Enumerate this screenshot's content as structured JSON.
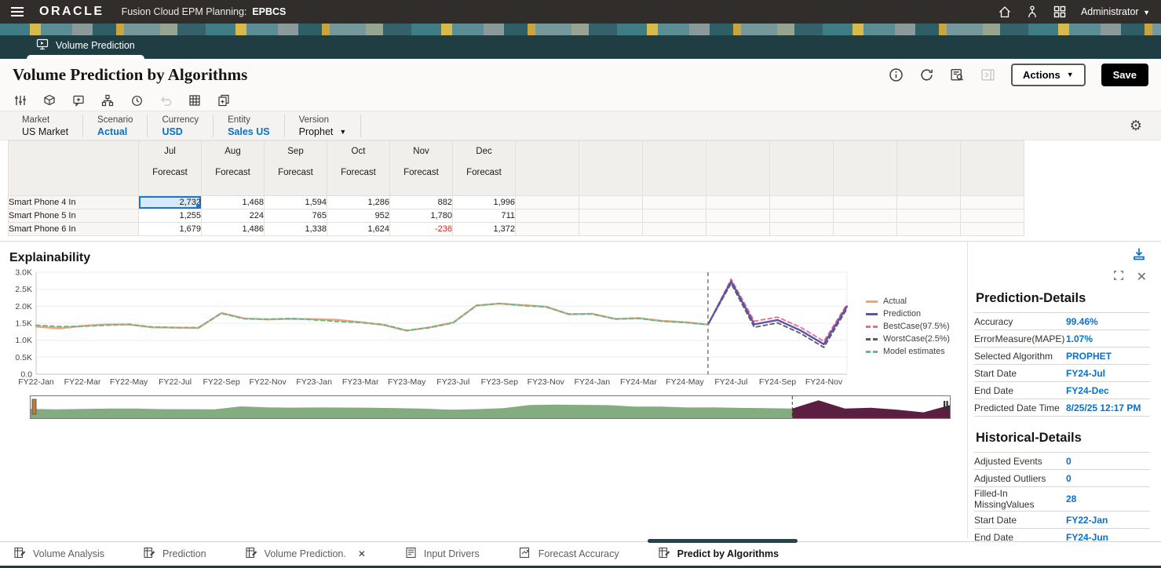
{
  "header": {
    "brand": "ORACLE",
    "product": "Fusion Cloud EPM Planning:",
    "app": "EPBCS",
    "user": "Administrator"
  },
  "workspace_tab": {
    "label": "Volume Prediction"
  },
  "page": {
    "title": "Volume Prediction by Algorithms",
    "actions_label": "Actions",
    "save_label": "Save"
  },
  "toolbar": {
    "icons": [
      {
        "name": "adjust-columns-icon",
        "disabled": false
      },
      {
        "name": "dimension-cube-icon",
        "disabled": false
      },
      {
        "name": "comment-icon",
        "disabled": false
      },
      {
        "name": "hierarchy-icon",
        "disabled": false
      },
      {
        "name": "history-icon",
        "disabled": false
      },
      {
        "name": "undo-icon",
        "disabled": true
      },
      {
        "name": "grid-icon",
        "disabled": false
      },
      {
        "name": "save-as-icon",
        "disabled": false
      }
    ]
  },
  "pov": {
    "items": [
      {
        "label": "Market",
        "value": "US Market",
        "blue": false,
        "dropdown": false
      },
      {
        "label": "Scenario",
        "value": "Actual",
        "blue": true,
        "dropdown": false
      },
      {
        "label": "Currency",
        "value": "USD",
        "blue": true,
        "dropdown": false
      },
      {
        "label": "Entity",
        "value": "Sales US",
        "blue": true,
        "dropdown": false
      },
      {
        "label": "Version",
        "value": "Prophet",
        "blue": false,
        "dropdown": true
      }
    ]
  },
  "grid": {
    "columns": [
      {
        "month": "Jul",
        "sub": "Forecast"
      },
      {
        "month": "Aug",
        "sub": "Forecast"
      },
      {
        "month": "Sep",
        "sub": "Forecast"
      },
      {
        "month": "Oct",
        "sub": "Forecast"
      },
      {
        "month": "Nov",
        "sub": "Forecast"
      },
      {
        "month": "Dec",
        "sub": "Forecast"
      }
    ],
    "empty_columns": 8,
    "rows": [
      {
        "name": "Smart Phone 4 In",
        "values": [
          "2,732",
          "1,468",
          "1,594",
          "1,286",
          "882",
          "1,996"
        ]
      },
      {
        "name": "Smart Phone 5 In",
        "values": [
          "1,255",
          "224",
          "765",
          "952",
          "1,780",
          "711"
        ]
      },
      {
        "name": "Smart Phone 6 In",
        "values": [
          "1,679",
          "1,486",
          "1,338",
          "1,624",
          "-236",
          "1,372"
        ]
      }
    ],
    "selected": {
      "row": 0,
      "col": 0
    }
  },
  "explainability": {
    "title": "Explainability"
  },
  "chart_data": {
    "type": "line",
    "title": "Explainability",
    "x": [
      "FY22-Jan",
      "FY22-Feb",
      "FY22-Mar",
      "FY22-Apr",
      "FY22-May",
      "FY22-Jun",
      "FY22-Jul",
      "FY22-Aug",
      "FY22-Sep",
      "FY22-Oct",
      "FY22-Nov",
      "FY22-Dec",
      "FY23-Jan",
      "FY23-Feb",
      "FY23-Mar",
      "FY23-Apr",
      "FY23-May",
      "FY23-Jun",
      "FY23-Jul",
      "FY23-Aug",
      "FY23-Sep",
      "FY23-Oct",
      "FY23-Nov",
      "FY23-Dec",
      "FY24-Jan",
      "FY24-Feb",
      "FY24-Mar",
      "FY24-Apr",
      "FY24-May",
      "FY24-Jun",
      "FY24-Jul",
      "FY24-Aug",
      "FY24-Sep",
      "FY24-Oct",
      "FY24-Nov",
      "FY24-Dec"
    ],
    "x_tick_every": 2,
    "ylim": [
      0,
      3
    ],
    "yticks": [
      "0.0",
      "0.5K",
      "1.0K",
      "1.5K",
      "2.0K",
      "2.5K",
      "3.0K"
    ],
    "unit": "K",
    "divider_index": 29,
    "legend_position": "right",
    "draw_order": [
      0,
      2,
      3,
      1,
      4
    ],
    "series": [
      {
        "name": "Actual",
        "color": "#F4A26E",
        "dash": false,
        "width": 2.4,
        "values": [
          1.4,
          1.35,
          1.42,
          1.46,
          1.46,
          1.38,
          1.37,
          1.36,
          1.8,
          1.64,
          1.61,
          1.63,
          1.62,
          1.6,
          1.53,
          1.45,
          1.28,
          1.38,
          1.52,
          2.02,
          2.08,
          2.03,
          1.99,
          1.76,
          1.78,
          1.63,
          1.65,
          1.57,
          1.53,
          1.46,
          null,
          null,
          null,
          null,
          null,
          null
        ]
      },
      {
        "name": "Prediction",
        "color": "#5C55A8",
        "dash": false,
        "width": 2.4,
        "values": [
          null,
          null,
          null,
          null,
          null,
          null,
          null,
          null,
          null,
          null,
          null,
          null,
          null,
          null,
          null,
          null,
          null,
          null,
          null,
          null,
          null,
          null,
          null,
          null,
          null,
          null,
          null,
          null,
          null,
          1.46,
          2.732,
          1.468,
          1.594,
          1.286,
          0.882,
          1.996
        ]
      },
      {
        "name": "BestCase(97.5%)",
        "color": "#F2678F",
        "dash": true,
        "width": 1.8,
        "values": [
          null,
          null,
          null,
          null,
          null,
          null,
          null,
          null,
          null,
          null,
          null,
          null,
          null,
          null,
          null,
          null,
          null,
          null,
          null,
          null,
          null,
          null,
          null,
          null,
          null,
          null,
          null,
          null,
          null,
          1.46,
          2.8,
          1.56,
          1.68,
          1.38,
          0.97,
          2.06
        ]
      },
      {
        "name": "WorstCase(2.5%)",
        "color": "#5B5B5B",
        "dash": true,
        "width": 1.8,
        "values": [
          null,
          null,
          null,
          null,
          null,
          null,
          null,
          null,
          null,
          null,
          null,
          null,
          null,
          null,
          null,
          null,
          null,
          null,
          null,
          null,
          null,
          null,
          null,
          null,
          null,
          null,
          null,
          null,
          null,
          1.46,
          2.67,
          1.38,
          1.51,
          1.2,
          0.79,
          1.93
        ]
      },
      {
        "name": "Model estimates",
        "color": "#66B795",
        "dash": true,
        "width": 2,
        "values": [
          1.44,
          1.4,
          1.41,
          1.44,
          1.47,
          1.39,
          1.37,
          1.37,
          1.79,
          1.63,
          1.62,
          1.64,
          1.6,
          1.55,
          1.52,
          1.46,
          1.29,
          1.37,
          1.51,
          2.02,
          2.08,
          2.02,
          1.98,
          1.77,
          1.77,
          1.62,
          1.64,
          1.56,
          1.52,
          1.46,
          null,
          null,
          null,
          null,
          null,
          null
        ]
      }
    ]
  },
  "prediction_details": {
    "title": "Prediction-Details",
    "rows": [
      {
        "label": "Accuracy",
        "value": "99.46%"
      },
      {
        "label": "ErrorMeasure(MAPE)",
        "value": "1.07%"
      },
      {
        "label": "Selected Algorithm",
        "value": "PROPHET"
      },
      {
        "label": "Start Date",
        "value": "FY24-Jul"
      },
      {
        "label": "End Date",
        "value": "FY24-Dec"
      },
      {
        "label": "Predicted Date Time",
        "value": "8/25/25 12:17 PM"
      }
    ]
  },
  "historical_details": {
    "title": "Historical-Details",
    "rows": [
      {
        "label": "Adjusted Events",
        "value": "0"
      },
      {
        "label": "Adjusted Outliers",
        "value": "0"
      },
      {
        "label": "Filled-In MissingValues",
        "value": "28"
      },
      {
        "label": "Start Date",
        "value": "FY22-Jan"
      },
      {
        "label": "End Date",
        "value": "FY24-Jun"
      }
    ]
  },
  "bottom_tabs": [
    {
      "label": "Volume Analysis",
      "icon": "form-icon",
      "closable": false,
      "active": false
    },
    {
      "label": "Prediction",
      "icon": "form-icon",
      "closable": false,
      "active": false
    },
    {
      "label": "Volume Prediction.",
      "icon": "form-icon",
      "closable": true,
      "active": false
    },
    {
      "label": "Input Drivers",
      "icon": "input-drivers-icon",
      "closable": false,
      "active": false
    },
    {
      "label": "Forecast Accuracy",
      "icon": "forecast-accuracy-icon",
      "closable": false,
      "active": false
    },
    {
      "label": "Predict by Algorithms",
      "icon": "form-icon",
      "closable": false,
      "active": true
    }
  ],
  "colors": {
    "accent_blue": "#0572CE",
    "topbar_bg": "#312D2A",
    "teal_bar": "#1F3D43",
    "selected_cell_border": "#1E76C8",
    "negative_red": "#D3291C",
    "minimap_green": "#84AC81",
    "minimap_maroon": "#5C1F41"
  }
}
